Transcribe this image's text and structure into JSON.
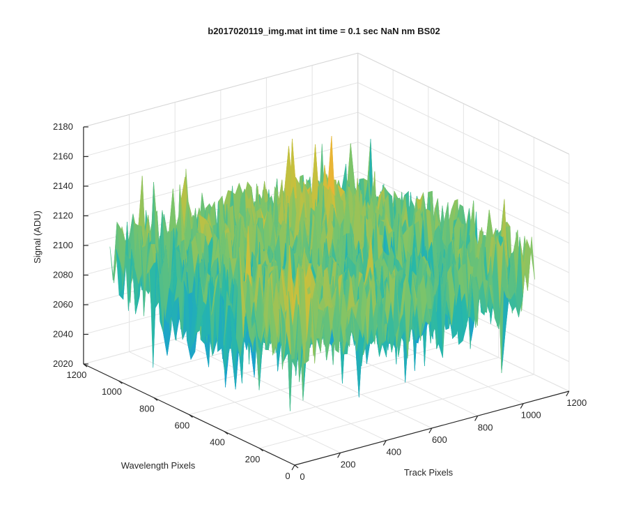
{
  "chart_data": {
    "type": "surface",
    "title": "b2017020119_img.mat int time = 0.1 sec  NaN nm BS02",
    "xlabel": "Track Pixels",
    "ylabel": "Wavelength Pixels",
    "zlabel": "Signal (ADU)",
    "xlim": [
      0,
      1200
    ],
    "ylim": [
      0,
      1200
    ],
    "zlim": [
      2020,
      2180
    ],
    "xticks": [
      "0",
      "200",
      "400",
      "600",
      "800",
      "1000",
      "1200"
    ],
    "yticks": [
      "0",
      "200",
      "400",
      "600",
      "800",
      "1000",
      "1200"
    ],
    "zticks": [
      "2020",
      "2040",
      "2060",
      "2080",
      "2100",
      "2120",
      "2140",
      "2160",
      "2180"
    ],
    "grid": true,
    "colormap": [
      "#0f6fd6",
      "#1aa0d0",
      "#28b8a8",
      "#7cc46a",
      "#c9c03c",
      "#f2b233"
    ],
    "surface_extent": {
      "x": [
        0,
        1050
      ],
      "y": [
        0,
        1050
      ]
    },
    "surface_level": {
      "mean": 2100,
      "min": 2040,
      "max": 2175
    }
  }
}
